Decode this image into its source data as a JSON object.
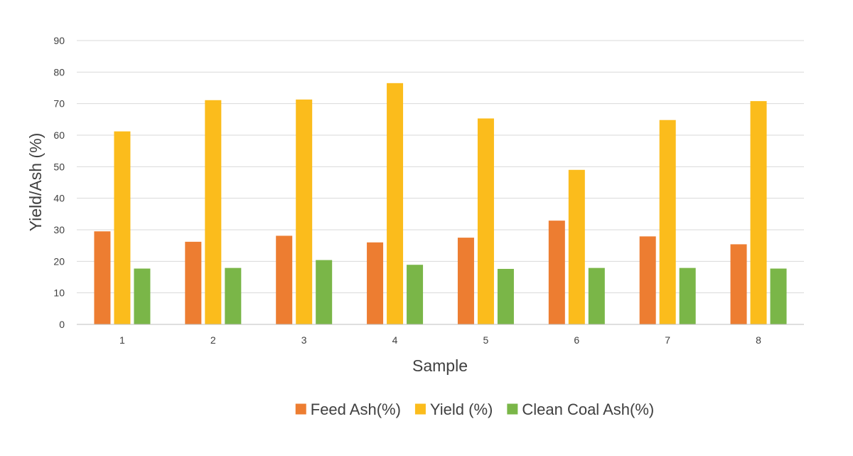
{
  "chart_data": {
    "type": "bar",
    "title": "",
    "xlabel": "Sample",
    "ylabel": "Yield/Ash (%)",
    "categories": [
      "1",
      "2",
      "3",
      "4",
      "5",
      "6",
      "7",
      "8"
    ],
    "ylim": [
      0,
      90
    ],
    "yticks": [
      "0",
      "10",
      "20",
      "30",
      "40",
      "50",
      "60",
      "70",
      "80",
      "90"
    ],
    "grid": true,
    "legend_position": "bottom",
    "series": [
      {
        "name": "Feed Ash(%)",
        "color": "#ed7d31",
        "values": [
          29.5,
          26.2,
          28.1,
          26.0,
          27.5,
          32.9,
          27.9,
          25.4
        ]
      },
      {
        "name": "Yield (%)",
        "color": "#fbbc1c",
        "values": [
          61.2,
          71.1,
          71.3,
          76.5,
          65.3,
          49.0,
          64.8,
          70.8
        ]
      },
      {
        "name": "Clean Coal Ash(%)",
        "color": "#7ab648",
        "values": [
          17.7,
          17.9,
          20.4,
          18.9,
          17.6,
          17.9,
          17.9,
          17.7
        ]
      }
    ]
  }
}
